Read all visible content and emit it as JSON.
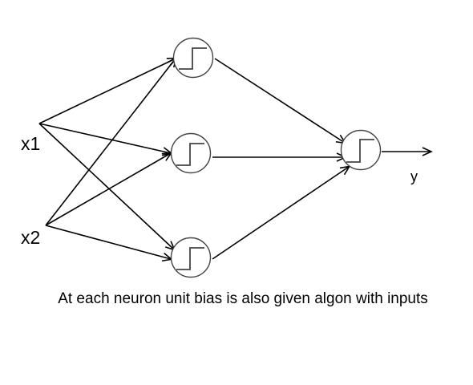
{
  "inputs": {
    "x1": "x1",
    "x2": "x2"
  },
  "output": {
    "y": "y"
  },
  "caption": "At each neuron unit bias is also given algon with inputs",
  "neuron_activation_icon": "step-function-icon",
  "colors": {
    "stroke": "#000000",
    "neuron_stroke": "#444444",
    "background": "#ffffff"
  }
}
